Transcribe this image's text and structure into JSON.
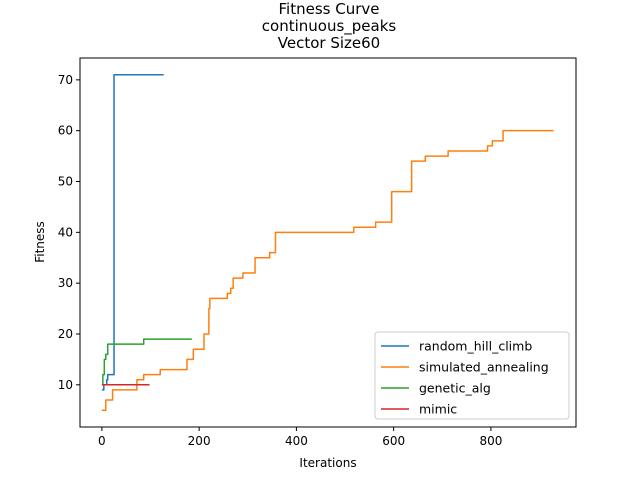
{
  "chart_data": {
    "type": "line",
    "title_lines": [
      "Fitness Curve",
      "continuous_peaks",
      "Vector Size60"
    ],
    "xlabel": "Iterations",
    "ylabel": "Fitness",
    "xlim": [
      -45,
      975
    ],
    "ylim": [
      1.7,
      74.3
    ],
    "xticks": [
      0,
      200,
      400,
      600,
      800
    ],
    "yticks": [
      10,
      20,
      30,
      40,
      50,
      60,
      70
    ],
    "grid": false,
    "legend_position": "lower-right",
    "series": [
      {
        "name": "random_hill_climb",
        "color": "#1f77b4",
        "step": true,
        "points": [
          [
            0,
            9
          ],
          [
            4,
            10
          ],
          [
            10,
            11
          ],
          [
            12,
            12
          ],
          [
            22,
            12
          ],
          [
            25,
            71
          ],
          [
            127,
            71
          ]
        ]
      },
      {
        "name": "simulated_annealing",
        "color": "#ff7f0e",
        "step": true,
        "points": [
          [
            0,
            5
          ],
          [
            6,
            5
          ],
          [
            8,
            7
          ],
          [
            20,
            7
          ],
          [
            22,
            9
          ],
          [
            70,
            9
          ],
          [
            72,
            11
          ],
          [
            82,
            11
          ],
          [
            86,
            12
          ],
          [
            110,
            12
          ],
          [
            120,
            13
          ],
          [
            170,
            13
          ],
          [
            175,
            15
          ],
          [
            185,
            15
          ],
          [
            188,
            17
          ],
          [
            208,
            17
          ],
          [
            210,
            20
          ],
          [
            218,
            20
          ],
          [
            220,
            25
          ],
          [
            222,
            27
          ],
          [
            255,
            27
          ],
          [
            258,
            28
          ],
          [
            265,
            29
          ],
          [
            270,
            31
          ],
          [
            288,
            31
          ],
          [
            290,
            32
          ],
          [
            312,
            32
          ],
          [
            315,
            35
          ],
          [
            340,
            35
          ],
          [
            345,
            36
          ],
          [
            355,
            36
          ],
          [
            357,
            40
          ],
          [
            515,
            40
          ],
          [
            518,
            41
          ],
          [
            560,
            41
          ],
          [
            563,
            42
          ],
          [
            593,
            42
          ],
          [
            596,
            48
          ],
          [
            635,
            48
          ],
          [
            637,
            54
          ],
          [
            662,
            54
          ],
          [
            665,
            55
          ],
          [
            710,
            55
          ],
          [
            712,
            56
          ],
          [
            790,
            56
          ],
          [
            793,
            57
          ],
          [
            800,
            57
          ],
          [
            803,
            58
          ],
          [
            822,
            58
          ],
          [
            825,
            60
          ],
          [
            929,
            60
          ]
        ]
      },
      {
        "name": "genetic_alg",
        "color": "#2ca02c",
        "step": true,
        "points": [
          [
            0,
            10
          ],
          [
            2,
            12
          ],
          [
            5,
            15
          ],
          [
            8,
            16
          ],
          [
            12,
            18
          ],
          [
            84,
            18
          ],
          [
            86,
            19
          ],
          [
            185,
            19
          ]
        ]
      },
      {
        "name": "mimic",
        "color": "#d62728",
        "step": true,
        "points": [
          [
            0,
            10
          ],
          [
            98,
            10
          ]
        ]
      }
    ]
  }
}
